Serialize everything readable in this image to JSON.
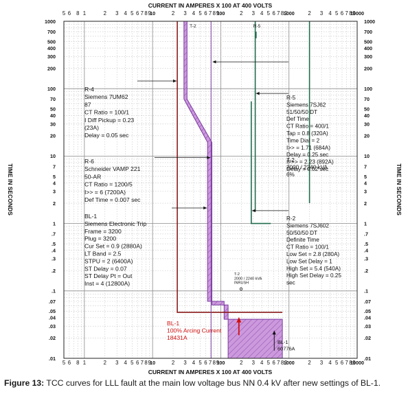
{
  "chart_data": {
    "type": "line",
    "title_top": "CURRENT IN AMPERES X 100 AT 400 VOLTS",
    "title_bottom": "CURRENT IN AMPERES X 100 AT 400 VOLTS",
    "ylabel_left": "TIME IN SECONDS",
    "ylabel_right": "TIME IN SECONDS",
    "x_scale": "log",
    "y_scale": "log",
    "xlim": [
      0.5,
      10000
    ],
    "ylim": [
      0.01,
      1000
    ],
    "grid": true,
    "x_tick_labels": [
      "5",
      "6",
      "8",
      "1",
      "2",
      "3",
      "4",
      "5",
      "6",
      "7",
      "8",
      "9",
      "10",
      "2",
      "3",
      "4",
      "5",
      "6",
      "7",
      "8",
      "9",
      "100",
      "2",
      "3",
      "4",
      "5",
      "6",
      "7",
      "8",
      "9",
      "1000",
      "2",
      "3",
      "4",
      "5",
      "6",
      "7",
      "8",
      "9",
      "10000"
    ],
    "y_tick_labels": [
      "1000",
      "700",
      "500",
      "400",
      "300",
      "200",
      "100",
      "70",
      "50",
      "40",
      "30",
      "20",
      "10",
      "7",
      "5",
      "4",
      "3",
      "2",
      "1",
      ".7",
      ".5",
      ".4",
      ".3",
      ".2",
      ".1",
      ".07",
      ".05",
      ".04",
      ".03",
      ".02",
      ".01"
    ],
    "series": [
      {
        "name": "R-4",
        "color": "#8b1a1a",
        "points": [
          [
            23,
            1000
          ],
          [
            23,
            0.048
          ],
          [
            800,
            0.048
          ]
        ]
      },
      {
        "name": "R-6",
        "color": "#7a3aa0",
        "points": [
          [
            72,
            1000
          ],
          [
            72,
            0.01
          ]
        ]
      },
      {
        "name": "BL-1",
        "color": "#7a3aa0",
        "fill": "#cc99dd",
        "band_left": [
          [
            28.8,
            1000
          ],
          [
            28.8,
            70
          ],
          [
            64,
            16
          ],
          [
            64,
            0.07
          ],
          [
            112,
            0.07
          ],
          [
            112,
            0.038
          ],
          [
            128,
            0.038
          ],
          [
            128,
            0.01
          ]
        ],
        "band_right": [
          [
            32,
            1000
          ],
          [
            32,
            70
          ],
          [
            74,
            16
          ],
          [
            74,
            0.062
          ],
          [
            128,
            0.062
          ],
          [
            128,
            0.038
          ],
          [
            800,
            0.038
          ],
          [
            800,
            0.01
          ]
        ]
      },
      {
        "name": "R-5",
        "color": "#1f6b4c",
        "points": [
          [
            320,
            1000
          ],
          [
            320,
            1.5
          ]
        ]
      },
      {
        "name": "R-5 high-set",
        "color": "#1f6b4c",
        "points": [
          [
            2000,
            1000
          ],
          [
            2000,
            2.0
          ]
        ]
      },
      {
        "name": "R-2",
        "color": "#1f6b4c",
        "points": [
          [
            280,
            65
          ],
          [
            280,
            1.0
          ],
          [
            540,
            1.0
          ]
        ]
      }
    ],
    "annotations": {
      "r4": {
        "lines": [
          "R-4",
          "Siemens 7UM62",
          "87",
          "CT Ratio = 100/1",
          "I Diff Pickup = 0.23",
          "(23A)",
          "Delay = 0.05 sec"
        ]
      },
      "r6": {
        "lines": [
          "R-6",
          "Schneider VAMP 221",
          "50-AR",
          "CT Ratio = 1200/5",
          "I>> = 6 (7200A)",
          "Def Time = 0.007 sec"
        ]
      },
      "bl1": {
        "lines": [
          "BL-1",
          "Siemens Electronic Trip",
          "Frame = 3200",
          "Plug = 3200",
          "Cur Set = 0.9 (2880A)",
          "LT Band = 2.5",
          "STPU = 2 (6400A)",
          "ST Delay = 0.07",
          "ST Delay Pt = Out",
          "Inst = 4 (12800A)"
        ]
      },
      "t2": {
        "lines": [
          "T-2",
          "2000 / 2240 kVA",
          "6%"
        ]
      },
      "r5": {
        "lines": [
          "R-5",
          "Siemens 7SJ62",
          "51/50/50 DT",
          "Def Time",
          "CT Ratio = 400/1",
          "Tap = 0.8 (320A)",
          "Time Dial = 2",
          "I>> = 1.71 (684A)",
          "Delay = 0.25 sec",
          "I>>> = 2.23 (892A)",
          "Delay = 0.02 sec"
        ]
      },
      "r2": {
        "lines": [
          "R-2",
          "Siemens 7SJ602",
          "50/50/50 DT",
          "Definite Time",
          "CT Ratio = 100/1",
          "Low Set = 2.8 (280A)",
          "Low Set Delay = 1",
          "High Set = 5.4 (540A)",
          "High Set Delay = 0.25",
          "sec"
        ]
      },
      "t2_inrush": {
        "lines": [
          "T-2",
          "2000 / 2240 kVA",
          "INRUSH"
        ]
      },
      "arc": {
        "lines": [
          "BL-1",
          "100% Arcing Current",
          "18431A"
        ]
      },
      "bl1_fault": {
        "lines": [
          "BL-1",
          "60776A"
        ]
      },
      "curve_t2": "T-2",
      "curve_r5": "R-5"
    }
  },
  "caption": {
    "label": "Figure 13:",
    "text": "TCC curves for LLL fault at the main low voltage bus NN 0.4 kV after new settings of BL-1."
  }
}
